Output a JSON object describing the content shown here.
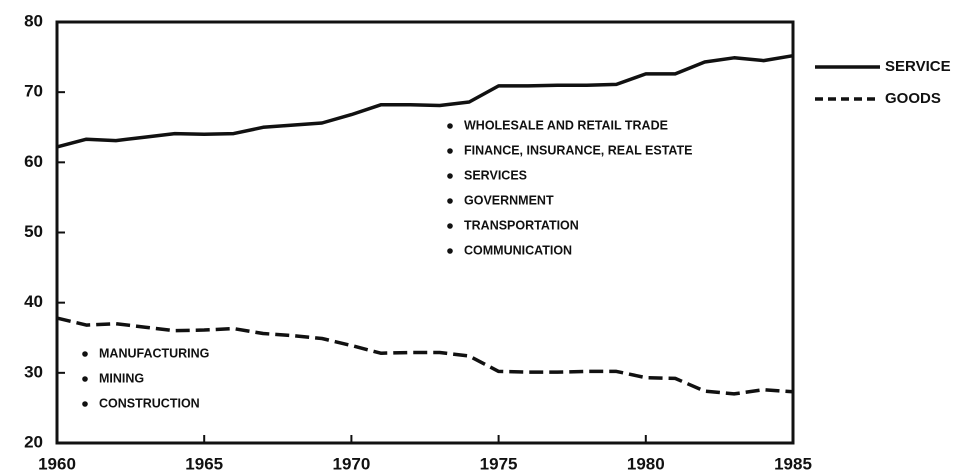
{
  "chart_data": {
    "type": "line",
    "x": [
      1960,
      1961,
      1962,
      1963,
      1964,
      1965,
      1966,
      1967,
      1968,
      1969,
      1970,
      1971,
      1972,
      1973,
      1974,
      1975,
      1976,
      1977,
      1978,
      1979,
      1980,
      1981,
      1982,
      1983,
      1984,
      1985
    ],
    "series": [
      {
        "name": "SERVICE",
        "color": "#111111",
        "dash": "solid",
        "values": [
          62.2,
          63.3,
          63.1,
          63.6,
          64.1,
          64.0,
          64.1,
          65.0,
          65.3,
          65.6,
          66.8,
          68.2,
          68.2,
          68.1,
          68.6,
          70.9,
          70.9,
          71.0,
          71.0,
          71.1,
          72.6,
          72.6,
          74.3,
          74.9,
          74.5,
          75.2
        ]
      },
      {
        "name": "GOODS",
        "color": "#111111",
        "dash": "dashed",
        "values": [
          37.8,
          36.8,
          37.0,
          36.5,
          36.0,
          36.1,
          36.3,
          35.6,
          35.3,
          34.9,
          33.9,
          32.8,
          32.9,
          32.9,
          32.4,
          30.2,
          30.1,
          30.1,
          30.2,
          30.2,
          29.3,
          29.2,
          27.4,
          27.0,
          27.6,
          27.3
        ]
      }
    ],
    "xlim": [
      1960,
      1985
    ],
    "xticks": [
      1960,
      1965,
      1970,
      1975,
      1980,
      1985
    ],
    "ylim": [
      20,
      80
    ],
    "yticks": [
      20,
      30,
      40,
      50,
      60,
      70,
      80
    ],
    "legend": "right",
    "annotations": [
      [
        "WHOLESALE AND RETAIL TRADE",
        "FINANCE, INSURANCE, REAL ESTATE",
        "SERVICES",
        "GOVERNMENT",
        "TRANSPORTATION",
        "COMMUNICATION"
      ],
      [
        "MANUFACTURING",
        "MINING",
        "CONSTRUCTION"
      ]
    ]
  }
}
